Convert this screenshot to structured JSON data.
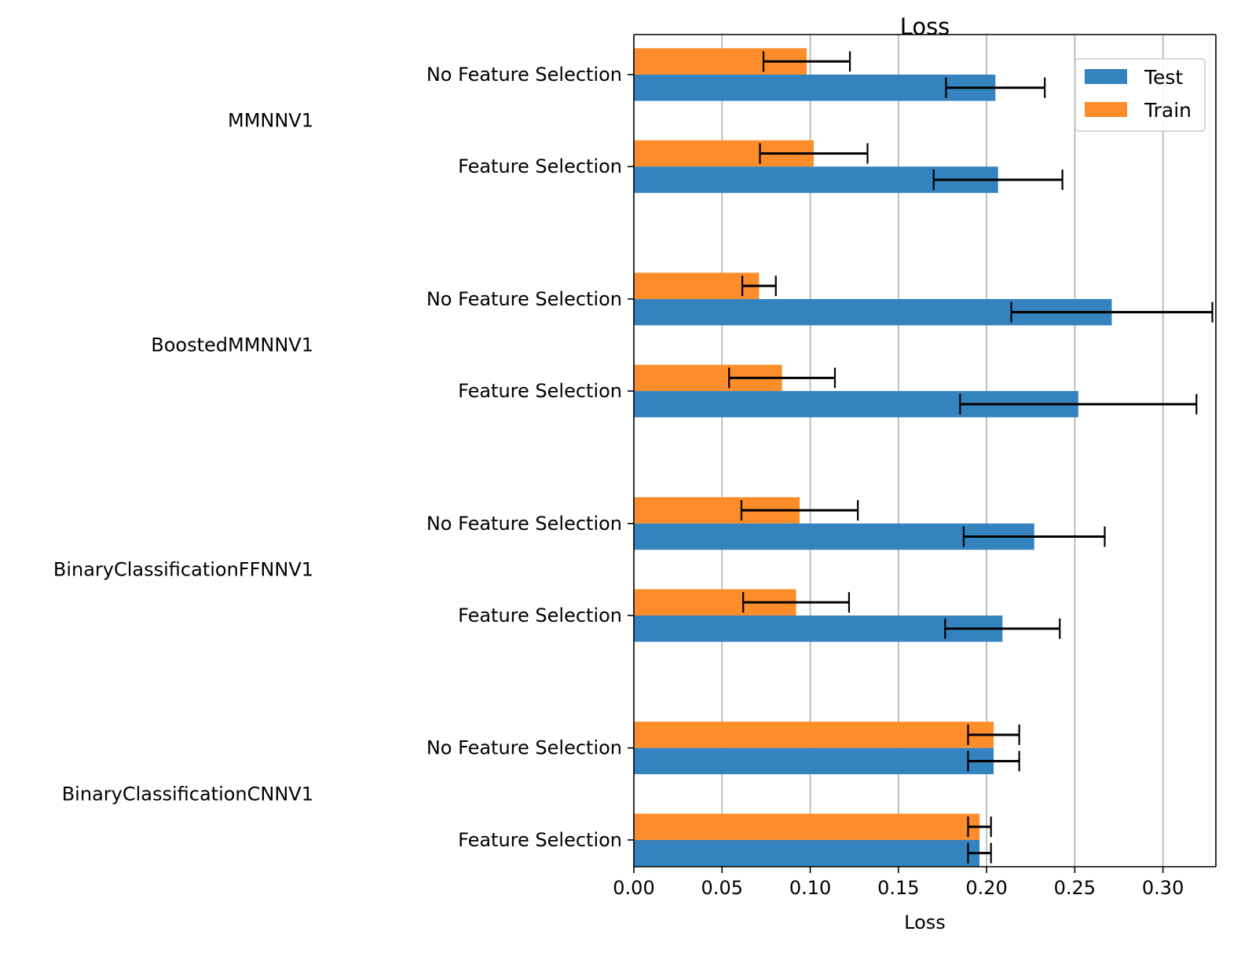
{
  "chart_data": {
    "type": "bar",
    "orientation": "horizontal",
    "title": "Loss",
    "xlabel": "Loss",
    "xlim": [
      0,
      0.33
    ],
    "x_ticks": [
      0.0,
      0.05,
      0.1,
      0.15,
      0.2,
      0.25,
      0.3
    ],
    "x_tick_labels": [
      "0.00",
      "0.05",
      "0.10",
      "0.15",
      "0.20",
      "0.25",
      "0.30"
    ],
    "grid": "vertical",
    "legend_position": "top-right",
    "groups": [
      {
        "name": "MMNNV1",
        "subcategories": [
          {
            "label": "No Feature Selection",
            "train": 0.098,
            "train_err": 0.0245,
            "test": 0.205,
            "test_err": 0.028
          },
          {
            "label": "Feature Selection",
            "train": 0.102,
            "train_err": 0.0305,
            "test": 0.2065,
            "test_err": 0.0365
          }
        ]
      },
      {
        "name": "BoostedMMNNV1",
        "subcategories": [
          {
            "label": "No Feature Selection",
            "train": 0.071,
            "train_err": 0.0095,
            "test": 0.271,
            "test_err": 0.057
          },
          {
            "label": "Feature Selection",
            "train": 0.084,
            "train_err": 0.03,
            "test": 0.252,
            "test_err": 0.067
          }
        ]
      },
      {
        "name": "BinaryClassificationFFNNV1",
        "subcategories": [
          {
            "label": "No Feature Selection",
            "train": 0.094,
            "train_err": 0.033,
            "test": 0.227,
            "test_err": 0.04
          },
          {
            "label": "Feature Selection",
            "train": 0.092,
            "train_err": 0.03,
            "test": 0.209,
            "test_err": 0.0325
          }
        ]
      },
      {
        "name": "BinaryClassificationCNNV1",
        "subcategories": [
          {
            "label": "No Feature Selection",
            "train": 0.204,
            "train_err": 0.0145,
            "test": 0.204,
            "test_err": 0.0145
          },
          {
            "label": "Feature Selection",
            "train": 0.196,
            "train_err": 0.0065,
            "test": 0.196,
            "test_err": 0.0065
          }
        ]
      }
    ],
    "series": [
      {
        "name": "Test",
        "color": "#3483be"
      },
      {
        "name": "Train",
        "color": "#fd8c2a"
      }
    ]
  }
}
